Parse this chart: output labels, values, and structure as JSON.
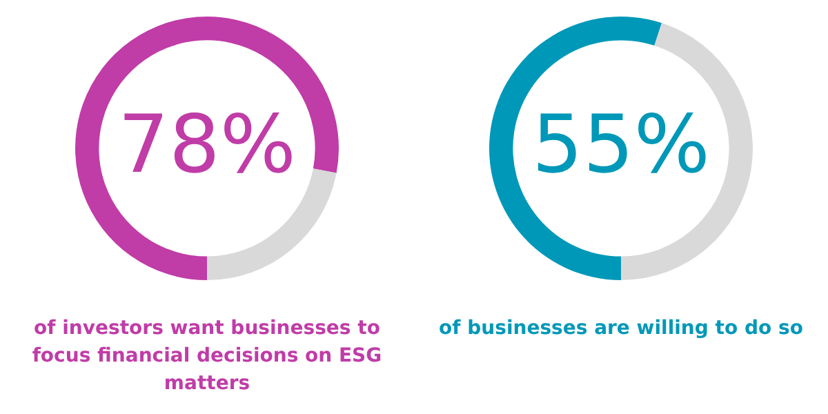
{
  "chart_data": [
    {
      "type": "donut",
      "categories": [
        null,
        null
      ],
      "values": [
        78,
        22
      ],
      "colors": [
        "#c03ca7",
        "#d9d9d9"
      ],
      "value_labels": [
        "78%",
        null
      ],
      "annotations": [
        "of investors want businesses to focus financial decisions on ESG matters"
      ],
      "legend": false
    },
    {
      "type": "donut",
      "categories": [
        null,
        null
      ],
      "values": [
        55,
        45
      ],
      "colors": [
        "#0098b8",
        "#d9d9d9"
      ],
      "value_labels": [
        "55%",
        null
      ],
      "annotations": [
        "of businesses are willing to do so"
      ],
      "legend": false
    }
  ]
}
